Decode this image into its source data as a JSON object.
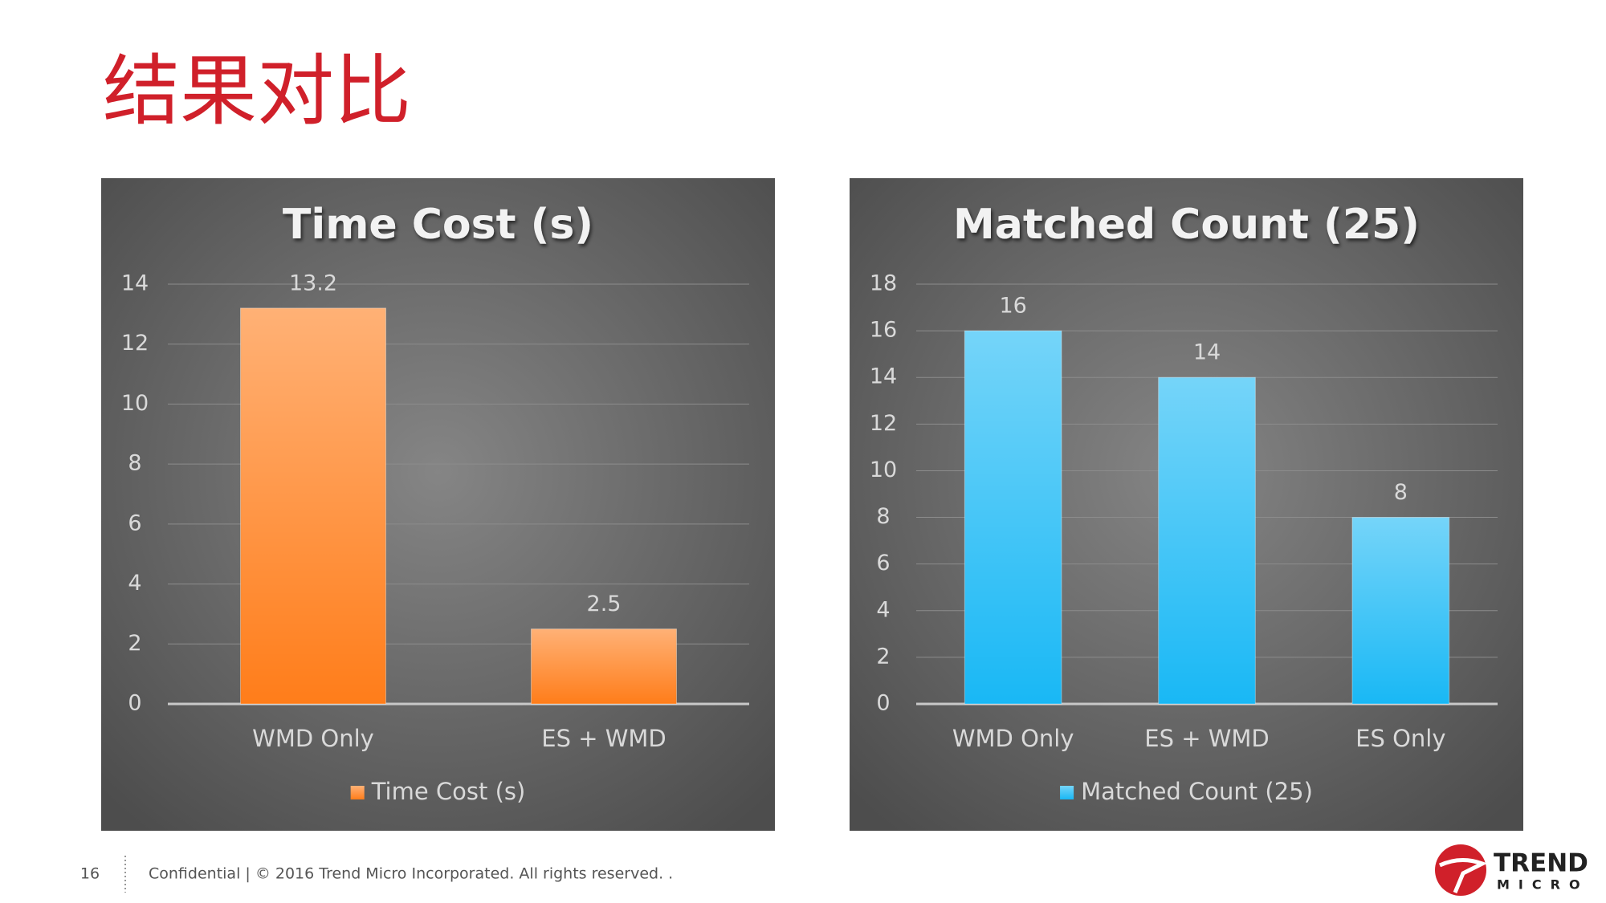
{
  "title": "结果对比",
  "chart_data": [
    {
      "type": "bar",
      "title": "Time Cost (s)",
      "categories": [
        "WMD Only",
        "ES + WMD"
      ],
      "series": [
        {
          "name": "Time Cost (s)",
          "color": "#ff7d1a",
          "values": [
            13.2,
            2.5
          ]
        }
      ],
      "ylim": [
        0,
        14
      ],
      "yticks": [
        0,
        2,
        4,
        6,
        8,
        10,
        12,
        14
      ],
      "grid": true,
      "legend": "bottom"
    },
    {
      "type": "bar",
      "title": "Matched Count (25)",
      "categories": [
        "WMD Only",
        "ES + WMD",
        "ES Only"
      ],
      "series": [
        {
          "name": "Matched Count (25)",
          "color": "#19b8f5",
          "values": [
            16,
            14,
            8
          ]
        }
      ],
      "ylim": [
        0,
        18
      ],
      "yticks": [
        0,
        2,
        4,
        6,
        8,
        10,
        12,
        14,
        16,
        18
      ],
      "grid": true,
      "legend": "bottom"
    }
  ],
  "footer": {
    "page": "16",
    "text": "Confidential | © 2016 Trend Micro Incorporated. All rights reserved. ."
  },
  "logo": {
    "top": "TREND",
    "bottom": "MICRO"
  }
}
